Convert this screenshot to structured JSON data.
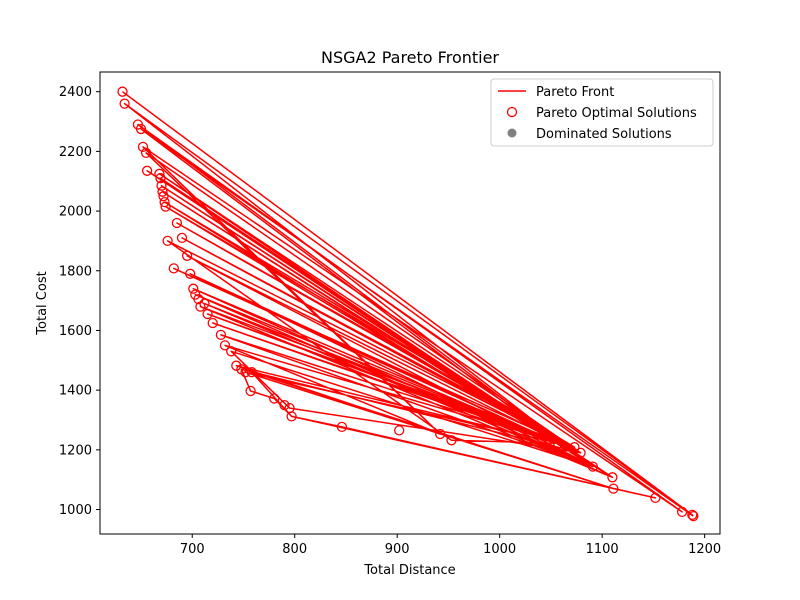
{
  "chart_data": {
    "type": "scatter",
    "title": "NSGA2 Pareto Frontier",
    "xlabel": "Total Distance",
    "ylabel": "Total Cost",
    "xlim": [
      610,
      1215
    ],
    "ylim": [
      918,
      2466
    ],
    "xticks": [
      700,
      800,
      900,
      1000,
      1100,
      1200
    ],
    "yticks": [
      1000,
      1200,
      1400,
      1600,
      1800,
      2000,
      2200,
      2400
    ],
    "grid": false,
    "legend": {
      "placement": "top-right",
      "entries": [
        "Pareto Front",
        "Pareto Optimal Solutions",
        "Dominated Solutions"
      ]
    },
    "colors": {
      "front": "#ff0000",
      "dominated": "#808080"
    },
    "pareto_points": [
      [
        632,
        2400
      ],
      [
        634,
        2360
      ],
      [
        647,
        2290
      ],
      [
        650,
        2275
      ],
      [
        652,
        2215
      ],
      [
        655,
        2195
      ],
      [
        656,
        2135
      ],
      [
        668,
        2125
      ],
      [
        669,
        2110
      ],
      [
        670,
        2085
      ],
      [
        671,
        2065
      ],
      [
        672,
        2050
      ],
      [
        673,
        2030
      ],
      [
        674,
        2015
      ],
      [
        676,
        1900
      ],
      [
        682,
        1808
      ],
      [
        685,
        1960
      ],
      [
        690,
        1910
      ],
      [
        695,
        1850
      ],
      [
        698,
        1790
      ],
      [
        701,
        1740
      ],
      [
        703,
        1720
      ],
      [
        706,
        1705
      ],
      [
        708,
        1680
      ],
      [
        712,
        1690
      ],
      [
        715,
        1655
      ],
      [
        720,
        1625
      ],
      [
        728,
        1585
      ],
      [
        732,
        1550
      ],
      [
        738,
        1530
      ],
      [
        743,
        1482
      ],
      [
        748,
        1470
      ],
      [
        752,
        1460
      ],
      [
        757,
        1397
      ],
      [
        758,
        1460
      ],
      [
        780,
        1372
      ],
      [
        790,
        1350
      ],
      [
        795,
        1340
      ],
      [
        797,
        1312
      ],
      [
        846,
        1277
      ],
      [
        902,
        1265
      ],
      [
        942,
        1253
      ],
      [
        953,
        1232
      ],
      [
        1057,
        1222
      ],
      [
        1073,
        1209
      ],
      [
        1079,
        1190
      ],
      [
        1091,
        1144
      ],
      [
        1110,
        1108
      ],
      [
        1111,
        1070
      ],
      [
        1152,
        1039
      ],
      [
        1178,
        992
      ],
      [
        1188,
        982
      ],
      [
        1189,
        978
      ]
    ],
    "front_line_points": [
      [
        632,
        2400
      ],
      [
        1188,
        982
      ],
      [
        634,
        2360
      ],
      [
        1091,
        1144
      ],
      [
        647,
        2290
      ],
      [
        1178,
        992
      ],
      [
        652,
        2215
      ],
      [
        942,
        1253
      ],
      [
        655,
        2195
      ],
      [
        1079,
        1190
      ],
      [
        668,
        2125
      ],
      [
        1057,
        1222
      ],
      [
        670,
        2085
      ],
      [
        1110,
        1108
      ],
      [
        673,
        2030
      ],
      [
        1073,
        1209
      ],
      [
        676,
        1900
      ],
      [
        953,
        1232
      ],
      [
        1057,
        1222
      ],
      [
        682,
        1808
      ],
      [
        1073,
        1209
      ],
      [
        690,
        1910
      ],
      [
        1079,
        1190
      ],
      [
        701,
        1740
      ],
      [
        1091,
        1144
      ],
      [
        712,
        1690
      ],
      [
        1057,
        1222
      ],
      [
        720,
        1625
      ],
      [
        1073,
        1209
      ],
      [
        732,
        1550
      ],
      [
        942,
        1253
      ],
      [
        743,
        1482
      ],
      [
        1057,
        1222
      ],
      [
        752,
        1460
      ],
      [
        1111,
        1070
      ],
      [
        758,
        1460
      ],
      [
        797,
        1312
      ],
      [
        846,
        1277
      ],
      [
        1152,
        1039
      ],
      [
        797,
        1312
      ],
      [
        780,
        1372
      ],
      [
        757,
        1397
      ],
      [
        748,
        1470
      ],
      [
        1079,
        1190
      ],
      [
        795,
        1340
      ],
      [
        738,
        1530
      ],
      [
        1091,
        1144
      ],
      [
        728,
        1585
      ],
      [
        1057,
        1222
      ],
      [
        715,
        1655
      ],
      [
        1073,
        1209
      ],
      [
        708,
        1680
      ],
      [
        1110,
        1108
      ],
      [
        703,
        1720
      ],
      [
        1057,
        1222
      ],
      [
        698,
        1790
      ],
      [
        1091,
        1144
      ],
      [
        695,
        1850
      ],
      [
        1079,
        1190
      ],
      [
        685,
        1960
      ],
      [
        1073,
        1209
      ],
      [
        674,
        2015
      ],
      [
        1057,
        1222
      ],
      [
        671,
        2065
      ],
      [
        1091,
        1144
      ],
      [
        669,
        2110
      ],
      [
        1110,
        1108
      ],
      [
        656,
        2135
      ],
      [
        1057,
        1222
      ],
      [
        650,
        2275
      ],
      [
        1189,
        978
      ]
    ]
  }
}
